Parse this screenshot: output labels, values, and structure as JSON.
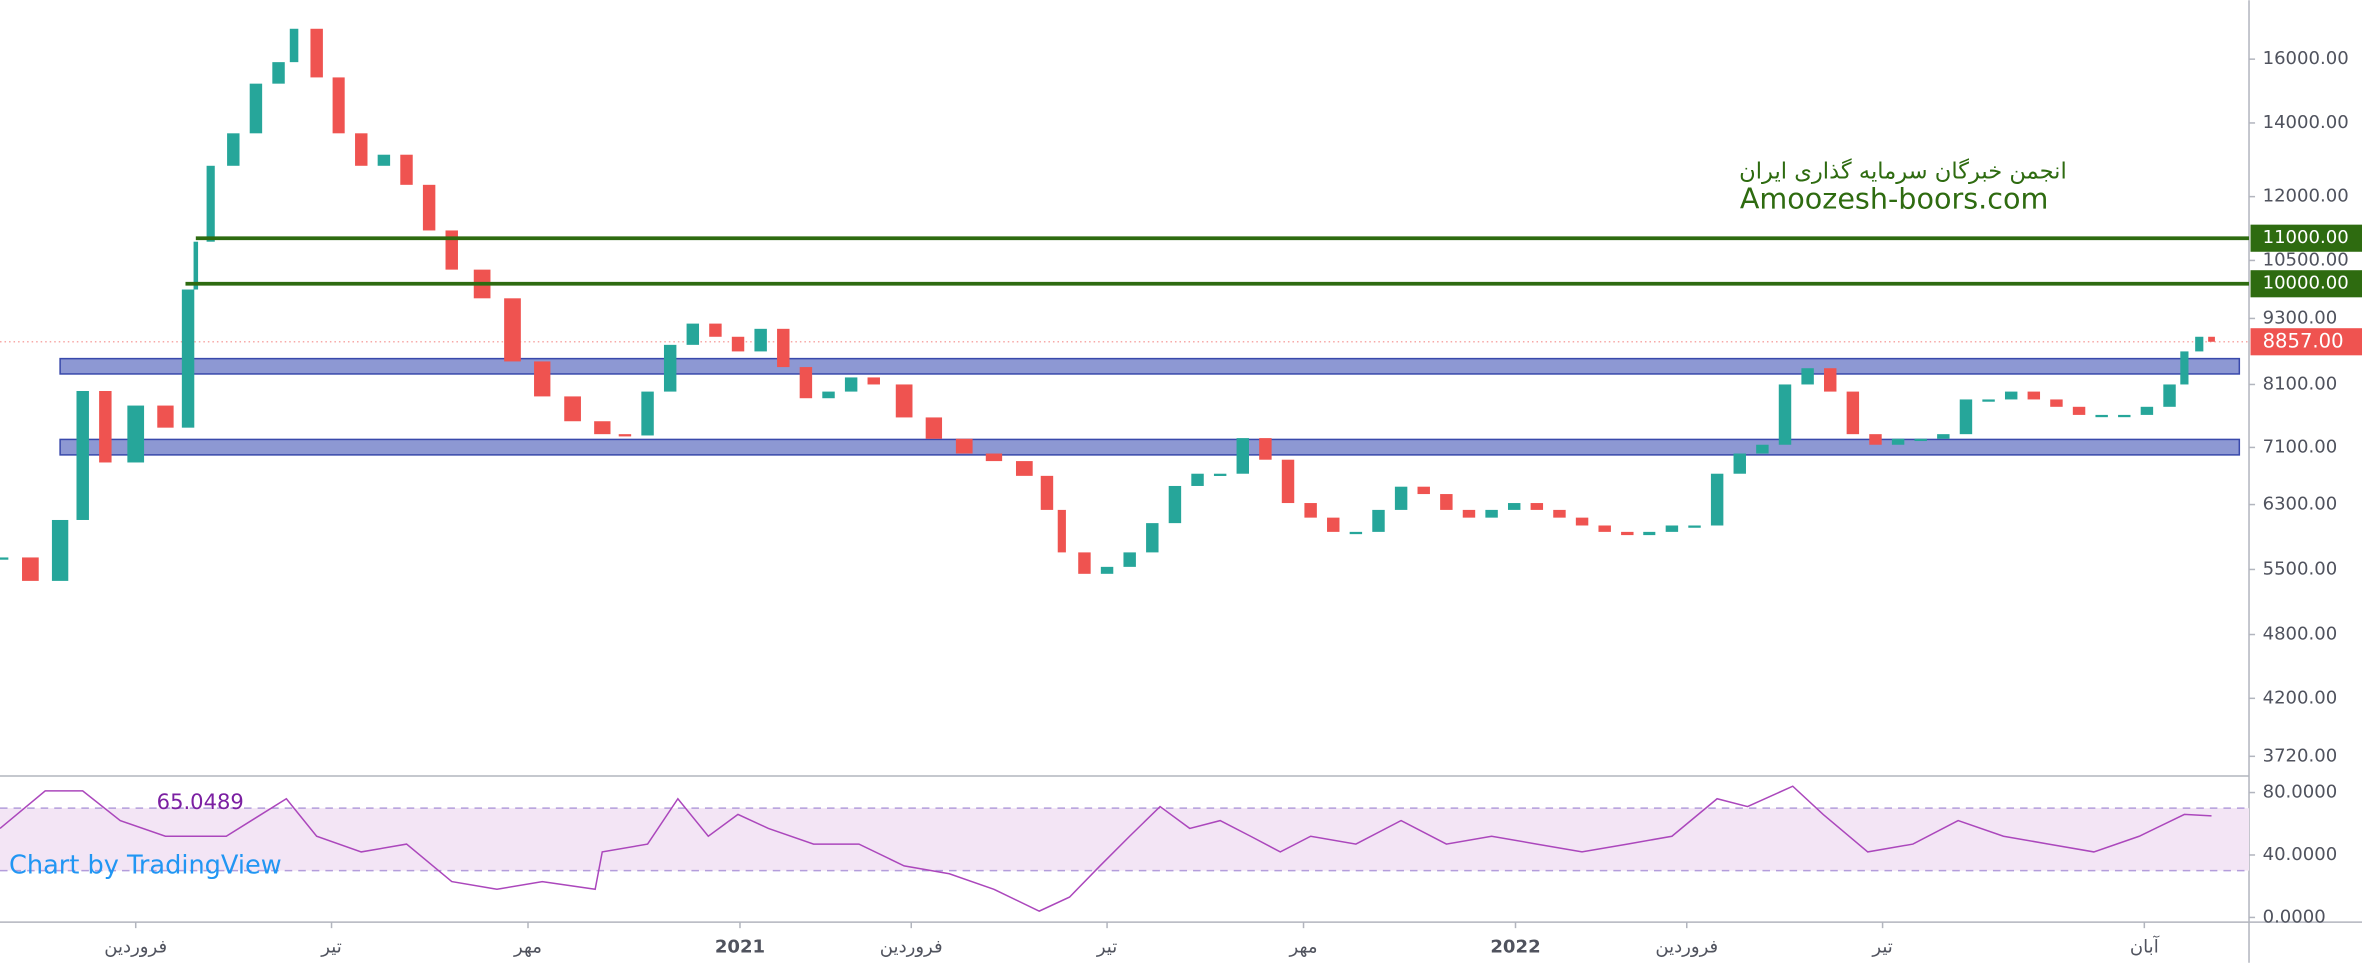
{
  "chart_data": [
    {
      "type": "candlestick",
      "log": true,
      "up_color": "#26a69a",
      "down_color": "#ef5350",
      "x": [
        0.55,
        1.02,
        1.48,
        1.83,
        2.18,
        2.65,
        3.11,
        3.46,
        3.58,
        3.81,
        4.16,
        4.51,
        4.86,
        5.1,
        5.45,
        5.79,
        6.14,
        6.49,
        6.84,
        7.19,
        7.54,
        8.01,
        8.48,
        8.94,
        9.41,
        9.87,
        10.22,
        10.57,
        10.92,
        11.27,
        11.62,
        11.97,
        12.32,
        12.67,
        13.02,
        13.37,
        13.72,
        14.07,
        14.54,
        15.0,
        15.47,
        15.93,
        16.4,
        16.75,
        16.98,
        17.33,
        17.68,
        18.03,
        18.38,
        18.73,
        19.08,
        19.43,
        19.78,
        20.13,
        20.48,
        20.83,
        21.18,
        21.53,
        21.88,
        22.23,
        22.58,
        22.93,
        23.28,
        23.63,
        23.98,
        24.33,
        24.68,
        25.03,
        25.38,
        25.73,
        26.07,
        26.42,
        26.77,
        27.12,
        27.47,
        27.82,
        28.17,
        28.52,
        28.87,
        29.22,
        29.57,
        29.92,
        30.27,
        30.62,
        30.97,
        31.32,
        31.67,
        32.02,
        32.37,
        32.72,
        33.07,
        33.42,
        33.77,
        34.12,
        34.35,
        34.58,
        34.77
      ],
      "values": [
        5640,
        5370,
        6100,
        7990,
        6880,
        7750,
        7400,
        9880,
        10920,
        12800,
        13700,
        15200,
        15900,
        17050,
        15400,
        13700,
        12800,
        13100,
        12300,
        11180,
        10300,
        9700,
        8500,
        7900,
        7500,
        7300,
        7280,
        7980,
        8800,
        9200,
        8950,
        8680,
        9100,
        8400,
        7870,
        7980,
        8220,
        8100,
        7560,
        7230,
        7010,
        6900,
        6690,
        6230,
        5700,
        5450,
        5530,
        5700,
        6060,
        6550,
        6720,
        6720,
        7240,
        6920,
        6320,
        6130,
        5950,
        5950,
        6230,
        6540,
        6440,
        6230,
        6130,
        6230,
        6320,
        6230,
        6130,
        6030,
        5950,
        5910,
        5950,
        6030,
        6030,
        6720,
        7010,
        7140,
        8100,
        8380,
        7980,
        7300,
        7140,
        7230,
        7230,
        7300,
        7850,
        7850,
        7980,
        7850,
        7730,
        7600,
        7600,
        7600,
        7730,
        8100,
        8680,
        8950,
        8857
      ],
      "xlim": [
        0.55,
        35.35
      ],
      "xticks": [
        {
          "value": 2.65,
          "label": "فروردین"
        },
        {
          "value": 5.68,
          "label": "تیر"
        },
        {
          "value": 8.72,
          "label": "مهر"
        },
        {
          "value": 12,
          "label": "2021"
        },
        {
          "value": 14.65,
          "label": "فروردین"
        },
        {
          "value": 17.68,
          "label": "تیر"
        },
        {
          "value": 20.72,
          "label": "مهر"
        },
        {
          "value": 24,
          "label": "2022"
        },
        {
          "value": 26.65,
          "label": "فروردین"
        },
        {
          "value": 29.68,
          "label": "تیر"
        },
        {
          "value": 33.73,
          "label": "آبان"
        }
      ],
      "ylim": [
        3570,
        18100
      ],
      "yticks": [
        {
          "value": 3720,
          "label": "3720.00"
        },
        {
          "value": 4200,
          "label": "4200.00"
        },
        {
          "value": 4800,
          "label": "4800.00"
        },
        {
          "value": 5500,
          "label": "5500.00"
        },
        {
          "value": 6300,
          "label": "6300.00"
        },
        {
          "value": 7100,
          "label": "7100.00"
        },
        {
          "value": 8100,
          "label": "8100.00"
        },
        {
          "value": 9300,
          "label": "9300.00"
        },
        {
          "value": 10500,
          "label": "10500.00"
        },
        {
          "value": 12000,
          "label": "12000.00"
        },
        {
          "value": 14000,
          "label": "14000.00"
        },
        {
          "value": 16000,
          "label": "16000.00"
        }
      ],
      "levels": [
        {
          "value": 11000,
          "label": "11000.00",
          "x_start": 3.58,
          "color": "#2e6b10"
        },
        {
          "value": 10000,
          "label": "10000.00",
          "x_start": 3.42,
          "color": "#2e6b10"
        }
      ],
      "zones": [
        {
          "range": [
            8280,
            8550
          ],
          "x": [
            1.48,
            35.2
          ]
        },
        {
          "range": [
            6990,
            7220
          ],
          "x": [
            1.48,
            35.2
          ]
        }
      ],
      "zone_color": "#7986cb",
      "last_price": {
        "value": 8857,
        "label": "8857.00",
        "color": "#ef5350"
      },
      "watermark": [
        "انجمن خبرگان سرمایه گذاری ایران",
        "Amoozesh-boors.com"
      ]
    },
    {
      "type": "line",
      "color": "#ab47bc",
      "x": [
        0.55,
        1.25,
        1.83,
        2.41,
        3.11,
        4.05,
        4.98,
        5.45,
        6.14,
        6.84,
        7.54,
        8.24,
        8.94,
        9.76,
        9.87,
        10.57,
        11.04,
        11.51,
        11.97,
        12.44,
        13.14,
        13.84,
        14.54,
        15.24,
        15.93,
        16.63,
        17.1,
        17.57,
        18.03,
        18.5,
        18.96,
        19.43,
        19.9,
        20.36,
        20.83,
        21.53,
        22.23,
        22.93,
        23.63,
        24.33,
        25.03,
        25.73,
        26.42,
        27.12,
        27.59,
        28.29,
        28.76,
        29.45,
        30.15,
        30.85,
        31.55,
        32.25,
        32.95,
        33.65,
        34.35,
        34.77
      ],
      "values": [
        57,
        81,
        81,
        62,
        52,
        52,
        76,
        52,
        42,
        47,
        23,
        18,
        23,
        18,
        42,
        47,
        76,
        52,
        66,
        57,
        47,
        47,
        33,
        28,
        18,
        4,
        13,
        33,
        52,
        71,
        57,
        62,
        52,
        42,
        52,
        47,
        62,
        47,
        52,
        47,
        42,
        47,
        52,
        76,
        71,
        84,
        66,
        42,
        47,
        62,
        52,
        47,
        42,
        52,
        66,
        65.0489
      ],
      "ylim": [
        -3,
        90.6
      ],
      "yticks": [
        {
          "value": 0,
          "label": "0.0000"
        },
        {
          "value": 40,
          "label": "40.0000"
        },
        {
          "value": 80,
          "label": "80.0000"
        }
      ],
      "band": [
        30,
        70
      ]
    }
  ],
  "attribution": "Chart by TradingView"
}
